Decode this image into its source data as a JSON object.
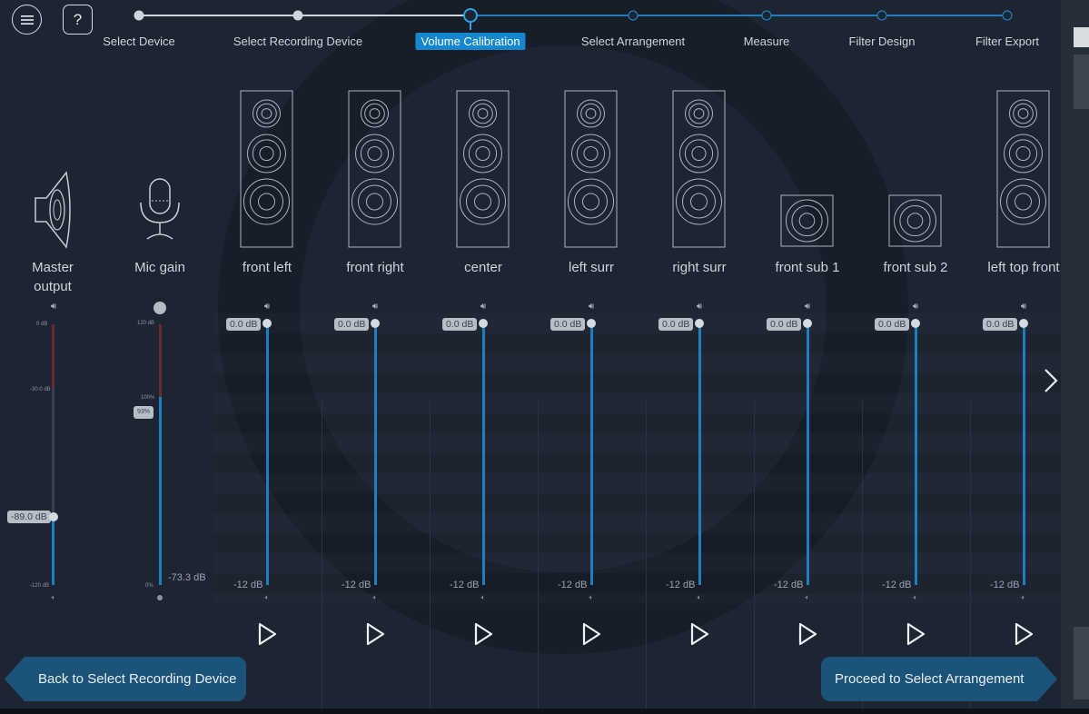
{
  "header": {
    "menu_icon": "hamburger-icon",
    "help_label": "?"
  },
  "wizard": {
    "steps": [
      {
        "label": "Select Device",
        "state": "done"
      },
      {
        "label": "Select Recording Device",
        "state": "done"
      },
      {
        "label": "Volume Calibration",
        "state": "current"
      },
      {
        "label": "Select Arrangement",
        "state": "todo"
      },
      {
        "label": "Measure",
        "state": "todo"
      },
      {
        "label": "Filter Design",
        "state": "todo"
      },
      {
        "label": "Filter Export",
        "state": "todo"
      }
    ]
  },
  "master": {
    "label_line1": "Master",
    "label_line2": "output",
    "value": "-89.0 dB",
    "top_tick": "0 dB",
    "mid_tick": "-30.0 dB",
    "bottom_tick": "-120 dB",
    "level_fraction": 0.74
  },
  "mic": {
    "label": "Mic gain",
    "value": "93%",
    "reading": "-73.3 dB",
    "top_tick": "120 dB",
    "mid_tick": "100%",
    "bottom_tick": "0%"
  },
  "channels": [
    {
      "name": "front left",
      "gain": "0.0 dB",
      "min": "-12 dB",
      "type": "tower"
    },
    {
      "name": "front right",
      "gain": "0.0 dB",
      "min": "-12 dB",
      "type": "tower"
    },
    {
      "name": "center",
      "gain": "0.0 dB",
      "min": "-12 dB",
      "type": "tower"
    },
    {
      "name": "left surr",
      "gain": "0.0 dB",
      "min": "-12 dB",
      "type": "tower"
    },
    {
      "name": "right surr",
      "gain": "0.0 dB",
      "min": "-12 dB",
      "type": "tower"
    },
    {
      "name": "front sub 1",
      "gain": "0.0 dB",
      "min": "-12 dB",
      "type": "sub"
    },
    {
      "name": "front sub 2",
      "gain": "0.0 dB",
      "min": "-12 dB",
      "type": "sub"
    },
    {
      "name": "left top front",
      "gain": "0.0 dB",
      "min": "-12 dB",
      "type": "tower"
    }
  ],
  "footer": {
    "back_label": "Back to Select Recording Device",
    "proceed_label": "Proceed to Select Arrangement"
  },
  "colors": {
    "accent": "#1b7fc4",
    "background": "#1d2532",
    "button": "#1c5378"
  }
}
